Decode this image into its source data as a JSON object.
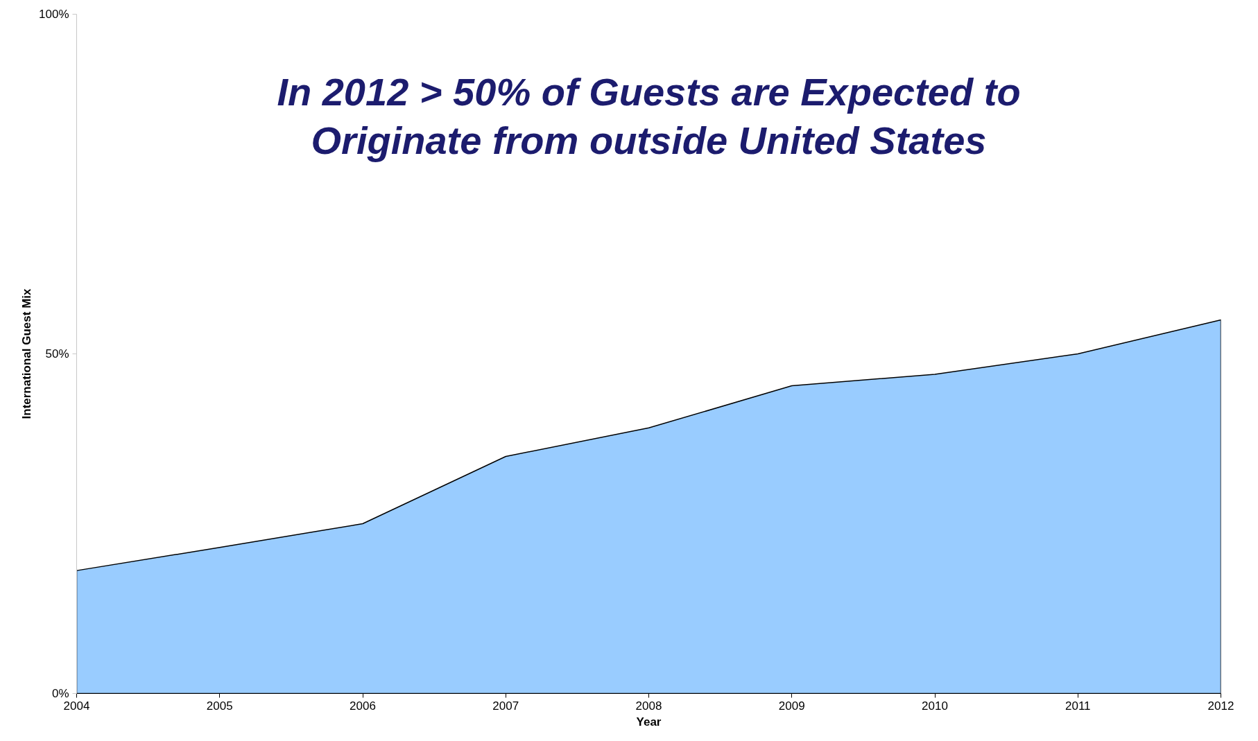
{
  "chart_data": {
    "type": "area",
    "title": "In 2012 > 50% of Guests are Expected to Originate from outside United States",
    "xlabel": "Year",
    "ylabel": "International Guest Mix",
    "x": [
      2004,
      2005,
      2006,
      2007,
      2008,
      2009,
      2010,
      2011,
      2012
    ],
    "series": [
      {
        "color": "#99ccff",
        "values": [
          18.1,
          21.5,
          25,
          34.9,
          39.1,
          45.3,
          47,
          50,
          55
        ]
      }
    ],
    "xlim": [
      2004,
      2012
    ],
    "xticks": [
      2004,
      2005,
      2006,
      2007,
      2008,
      2009,
      2010,
      2011,
      2012
    ],
    "ylim": [
      0,
      100
    ],
    "yticks": [
      {
        "value": 0,
        "label": "0%"
      },
      {
        "value": 50,
        "label": "50%"
      },
      {
        "value": 100,
        "label": "100%"
      }
    ],
    "grid": false
  }
}
